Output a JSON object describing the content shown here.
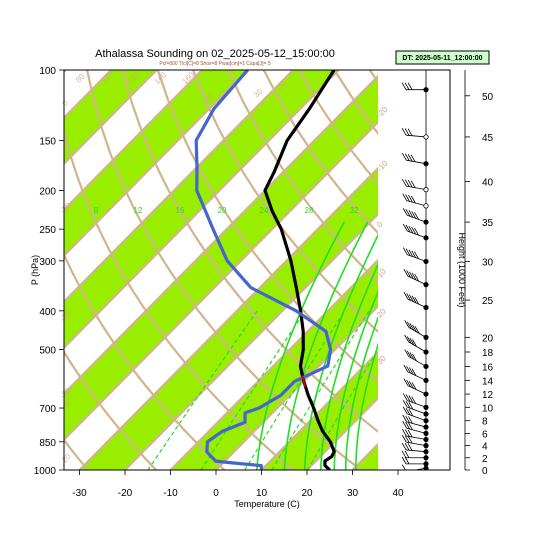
{
  "header": {
    "title": "Athalassa Sounding on 02_2025-05-12_15:00:00",
    "subtitle": "Pcl=800 Tlcl[C]=8 Shox=8 Pwat[cm]=1 Capa[J]= 5"
  },
  "dt_box": {
    "label": "DT: 2025-05-11_12:00:00"
  },
  "colors": {
    "band": "#99ee00",
    "isotherm": "#d2b48c",
    "mixing": "#22dd22",
    "temperature": "#000000",
    "dewpoint": "#4466cc",
    "parcel": "#cc0000"
  },
  "chart_data": {
    "type": "line",
    "diagram": "skew-T log-P",
    "xlabel": "Temperature (C)",
    "ylabel": "P (hPa)",
    "y2label": "Height (1000 Feet)",
    "xticks": [
      "-30",
      "-20",
      "-10",
      "0",
      "10",
      "20",
      "30",
      "40"
    ],
    "xtick_values": [
      -30,
      -20,
      -10,
      0,
      10,
      20,
      30,
      40
    ],
    "pressure_ticks": [
      "100",
      "150",
      "200",
      "250",
      "300",
      "400",
      "500",
      "700",
      "850",
      "1000"
    ],
    "pressure_values": [
      100,
      150,
      200,
      250,
      300,
      400,
      500,
      700,
      850,
      1000
    ],
    "height_ticks": [
      "0",
      "2",
      "4",
      "6",
      "8",
      "10",
      "12",
      "14",
      "16",
      "18",
      "20",
      "25",
      "30",
      "35",
      "40",
      "45",
      "50"
    ],
    "height_values": [
      0,
      2,
      4,
      6,
      8,
      10,
      12,
      14,
      16,
      18,
      20,
      25,
      30,
      35,
      40,
      45,
      50
    ],
    "isotherm_labels": [
      "-20",
      "-10",
      "0",
      "10",
      "20",
      "30"
    ],
    "isotherm_label_values": [
      -20,
      -10,
      0,
      10,
      20,
      30
    ],
    "adiabat_labels": [
      "80",
      "100",
      "120",
      "140",
      "160",
      "30",
      "20",
      "10",
      "0",
      "-10",
      "-30",
      "-20",
      "0",
      "20"
    ],
    "mixing_ratio_labels": [
      "8",
      "12",
      "16",
      "20",
      "24",
      "28",
      "32"
    ],
    "mixing_ratio_values": [
      8,
      12,
      16,
      20,
      24,
      28,
      32
    ],
    "mixing_dashed_values": [
      0.4,
      1,
      2,
      3,
      5
    ],
    "series": [
      {
        "name": "",
        "role": "temperature",
        "points": [
          {
            "p": 1000,
            "t": 25
          },
          {
            "p": 975,
            "t": 23
          },
          {
            "p": 950,
            "t": 22
          },
          {
            "p": 925,
            "t": 22.5
          },
          {
            "p": 900,
            "t": 22
          },
          {
            "p": 850,
            "t": 19
          },
          {
            "p": 800,
            "t": 15
          },
          {
            "p": 750,
            "t": 11.5
          },
          {
            "p": 700,
            "t": 8
          },
          {
            "p": 650,
            "t": 4
          },
          {
            "p": 600,
            "t": 0
          },
          {
            "p": 575,
            "t": -2
          },
          {
            "p": 550,
            "t": -4
          },
          {
            "p": 500,
            "t": -7
          },
          {
            "p": 450,
            "t": -11
          },
          {
            "p": 400,
            "t": -16
          },
          {
            "p": 350,
            "t": -22
          },
          {
            "p": 300,
            "t": -29
          },
          {
            "p": 250,
            "t": -38
          },
          {
            "p": 225,
            "t": -44
          },
          {
            "p": 200,
            "t": -50
          },
          {
            "p": 180,
            "t": -52
          },
          {
            "p": 150,
            "t": -56
          },
          {
            "p": 125,
            "t": -58
          },
          {
            "p": 100,
            "t": -61
          }
        ]
      },
      {
        "name": "",
        "role": "dewpoint",
        "points": [
          {
            "p": 1000,
            "t": 10
          },
          {
            "p": 975,
            "t": 9
          },
          {
            "p": 960,
            "t": 2
          },
          {
            "p": 950,
            "t": -2
          },
          {
            "p": 925,
            "t": -4
          },
          {
            "p": 900,
            "t": -6
          },
          {
            "p": 850,
            "t": -8
          },
          {
            "p": 800,
            "t": -7
          },
          {
            "p": 760,
            "t": -4
          },
          {
            "p": 720,
            "t": -6
          },
          {
            "p": 700,
            "t": -4
          },
          {
            "p": 650,
            "t": -2
          },
          {
            "p": 600,
            "t": -2
          },
          {
            "p": 550,
            "t": 2
          },
          {
            "p": 500,
            "t": -1
          },
          {
            "p": 450,
            "t": -6
          },
          {
            "p": 400,
            "t": -17
          },
          {
            "p": 350,
            "t": -32
          },
          {
            "p": 300,
            "t": -43
          },
          {
            "p": 250,
            "t": -53
          },
          {
            "p": 200,
            "t": -65
          },
          {
            "p": 175,
            "t": -70
          },
          {
            "p": 150,
            "t": -76
          },
          {
            "p": 125,
            "t": -79
          },
          {
            "p": 100,
            "t": -80
          }
        ]
      },
      {
        "name": "",
        "role": "parcel",
        "points": [
          {
            "p": 620,
            "t": 1.5
          },
          {
            "p": 600,
            "t": 0
          },
          {
            "p": 580,
            "t": -1.6
          }
        ]
      }
    ],
    "winds": [
      {
        "h": 0.3,
        "dir": 260,
        "kt": 10,
        "marker": "filled"
      },
      {
        "h": 1,
        "dir": 270,
        "kt": 15,
        "marker": "filled"
      },
      {
        "h": 2,
        "dir": 270,
        "kt": 20,
        "marker": "filled"
      },
      {
        "h": 3,
        "dir": 275,
        "kt": 25,
        "marker": "filled"
      },
      {
        "h": 4,
        "dir": 280,
        "kt": 25,
        "marker": "filled"
      },
      {
        "h": 5,
        "dir": 280,
        "kt": 25,
        "marker": "filled"
      },
      {
        "h": 6,
        "dir": 285,
        "kt": 30,
        "marker": "filled"
      },
      {
        "h": 7,
        "dir": 285,
        "kt": 30,
        "marker": "filled"
      },
      {
        "h": 8,
        "dir": 290,
        "kt": 30,
        "marker": "filled"
      },
      {
        "h": 9,
        "dir": 290,
        "kt": 30,
        "marker": "filled"
      },
      {
        "h": 10,
        "dir": 290,
        "kt": 35,
        "marker": "filled"
      },
      {
        "h": 12,
        "dir": 295,
        "kt": 35,
        "marker": "filled"
      },
      {
        "h": 14,
        "dir": 295,
        "kt": 35,
        "marker": "filled"
      },
      {
        "h": 16,
        "dir": 300,
        "kt": 40,
        "marker": "filled"
      },
      {
        "h": 18,
        "dir": 300,
        "kt": 40,
        "marker": "filled"
      },
      {
        "h": 20,
        "dir": 300,
        "kt": 45,
        "marker": "filled"
      },
      {
        "h": 24,
        "dir": 295,
        "kt": 45,
        "marker": "filled"
      },
      {
        "h": 27,
        "dir": 295,
        "kt": 50,
        "marker": "filled"
      },
      {
        "h": 30,
        "dir": 290,
        "kt": 50,
        "marker": "filled"
      },
      {
        "h": 33,
        "dir": 290,
        "kt": 45,
        "marker": "filled"
      },
      {
        "h": 35,
        "dir": 290,
        "kt": 45,
        "marker": "filled"
      },
      {
        "h": 37,
        "dir": 285,
        "kt": 40,
        "marker": "open"
      },
      {
        "h": 39,
        "dir": 280,
        "kt": 40,
        "marker": "open"
      },
      {
        "h": 42,
        "dir": 280,
        "kt": 35,
        "marker": "filled"
      },
      {
        "h": 45,
        "dir": 275,
        "kt": 30,
        "marker": "open"
      },
      {
        "h": 51,
        "dir": 270,
        "kt": 25,
        "marker": "filled"
      }
    ]
  }
}
